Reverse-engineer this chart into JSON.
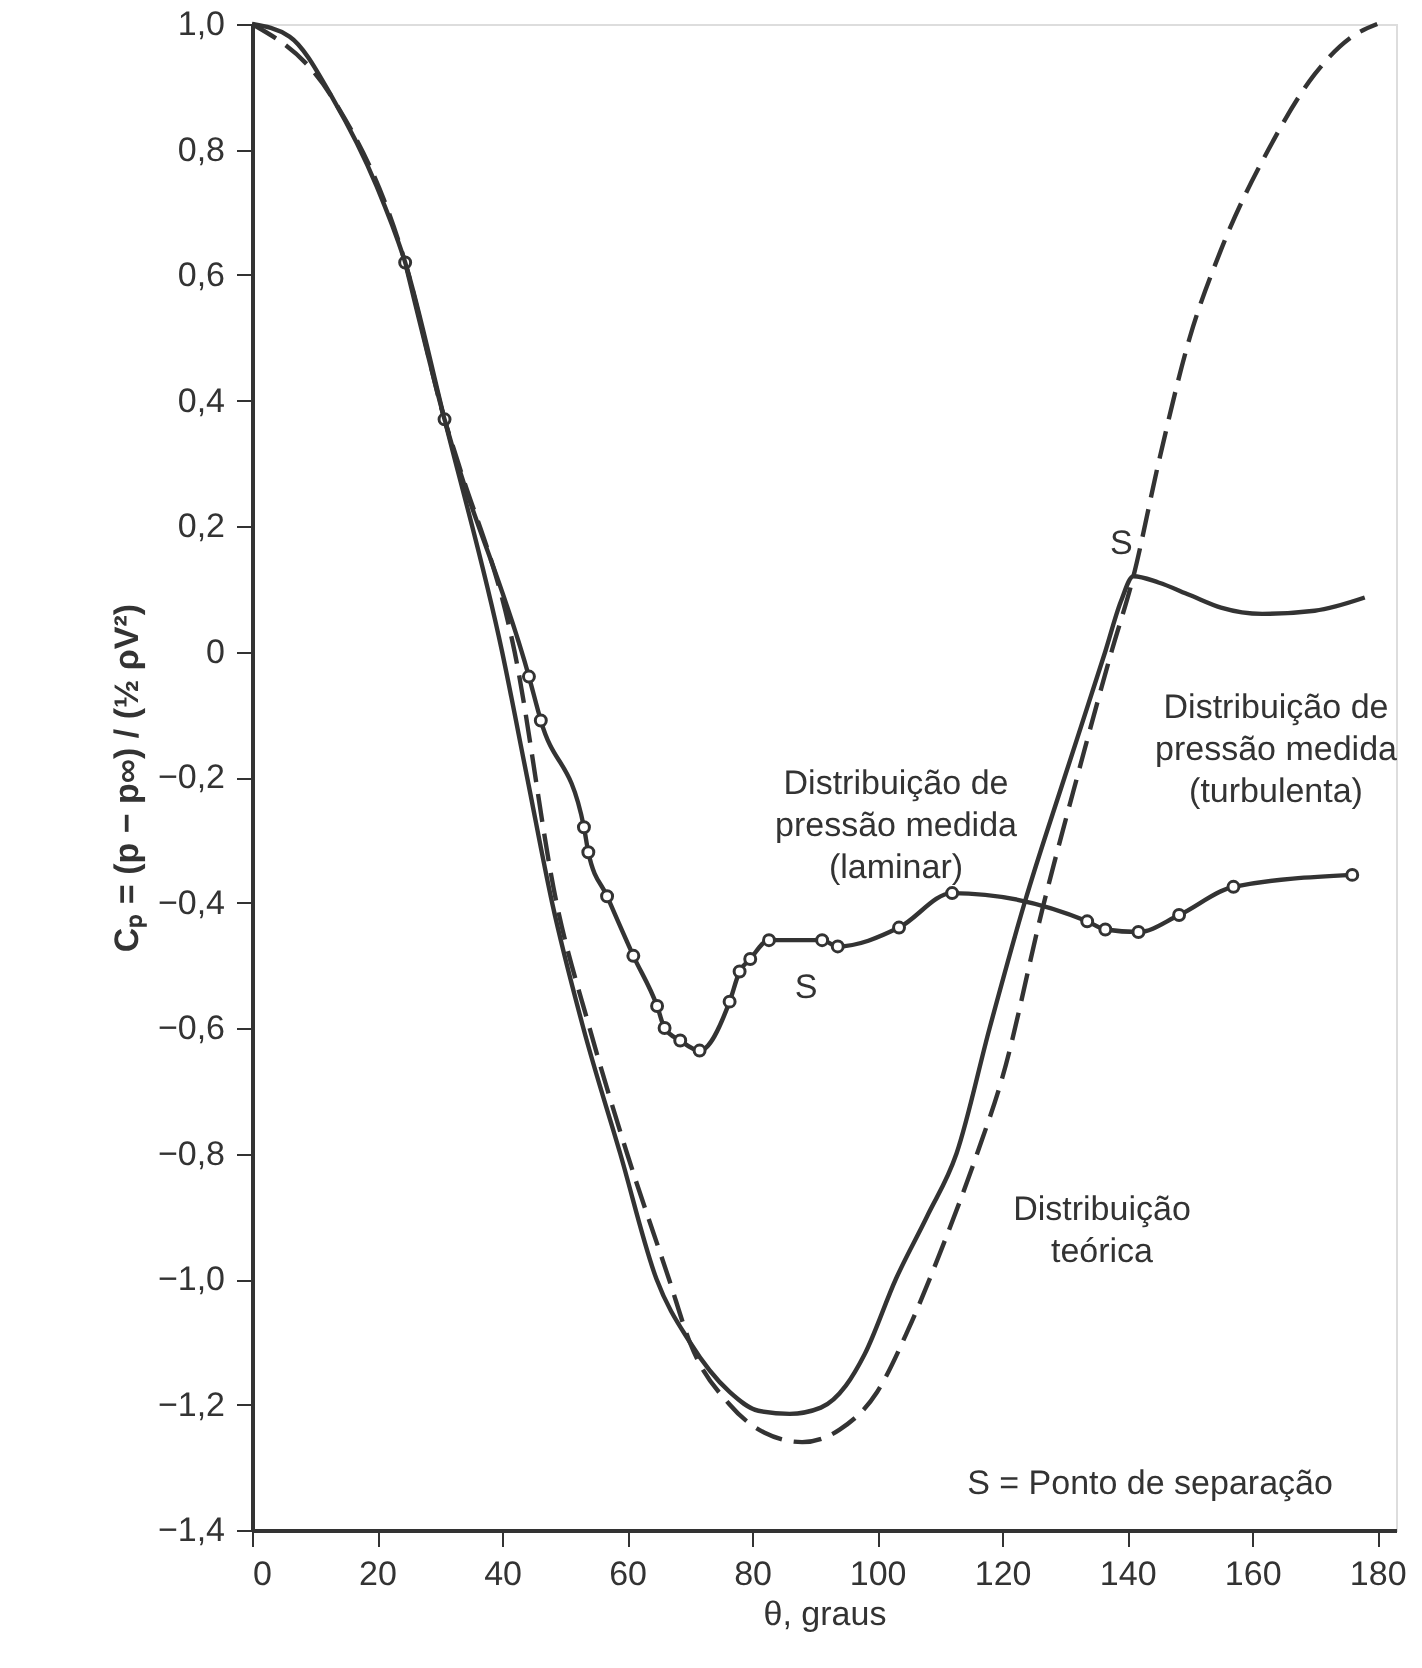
{
  "chart_data": {
    "type": "line",
    "xlabel": "θ, graus",
    "ylabel": "Cₚ = (p − p∞) / (½ ρV²)",
    "xlim": [
      0,
      183
    ],
    "ylim": [
      -1.4,
      1.0
    ],
    "xticks": [
      0,
      20,
      40,
      60,
      80,
      100,
      120,
      140,
      160,
      180
    ],
    "yticks": [
      {
        "value": 1.0,
        "label": "1,0"
      },
      {
        "value": 0.8,
        "label": "0,8"
      },
      {
        "value": 0.6,
        "label": "0,6"
      },
      {
        "value": 0.4,
        "label": "0,4"
      },
      {
        "value": 0.2,
        "label": "0,2"
      },
      {
        "value": 0,
        "label": "0"
      },
      {
        "value": -0.2,
        "label": "−0,2"
      },
      {
        "value": -0.4,
        "label": "−0,4"
      },
      {
        "value": -0.6,
        "label": "−0,6"
      },
      {
        "value": -0.8,
        "label": "−0,8"
      },
      {
        "value": -1.0,
        "label": "−1,0"
      },
      {
        "value": -1.2,
        "label": "−1,2"
      },
      {
        "value": -1.4,
        "label": "−1,4"
      }
    ],
    "grid": false,
    "series": [
      {
        "name": "Distribuição de pressão medida (turbulenta)",
        "color": "#333333",
        "line_style": "solid",
        "marker": "none",
        "x": [
          0,
          6,
          13,
          20,
          24.5,
          30.8,
          40,
          44,
          48,
          53,
          58.9,
          64.7,
          70,
          76.4,
          81,
          86,
          91,
          95,
          98,
          103,
          108,
          112.7,
          118,
          123.6,
          130,
          136.5,
          139,
          141,
          145,
          150,
          155,
          161.6,
          170,
          178
        ],
        "values": [
          1.0,
          0.98,
          0.88,
          0.74,
          0.62,
          0.37,
          0.0,
          -0.2,
          -0.4,
          -0.6,
          -0.8,
          -1.0,
          -1.1,
          -1.18,
          -1.21,
          -1.215,
          -1.205,
          -1.17,
          -1.12,
          -1.0,
          -0.9,
          -0.8,
          -0.6,
          -0.4,
          -0.2,
          0.0,
          0.08,
          0.12,
          0.11,
          0.09,
          0.07,
          0.06,
          0.065,
          0.086
        ]
      },
      {
        "name": "Distribuição de pressão medida (laminar)",
        "color": "#333333",
        "line_style": "solid",
        "marker": "circle",
        "x": [
          24.5,
          30.8,
          44.3,
          46.2,
          53.1,
          53.8,
          56.8,
          61,
          64.8,
          66,
          68.5,
          71.6,
          76.4,
          78,
          79.7,
          82.7,
          91.2,
          93.7,
          103.5,
          112,
          133.6,
          136.5,
          141.8,
          148.3,
          157,
          176
        ],
        "values": [
          0.62,
          0.37,
          -0.04,
          -0.11,
          -0.28,
          -0.32,
          -0.39,
          -0.485,
          -0.565,
          -0.6,
          -0.62,
          -0.636,
          -0.558,
          -0.51,
          -0.49,
          -0.46,
          -0.46,
          -0.47,
          -0.44,
          -0.385,
          -0.43,
          -0.443,
          -0.447,
          -0.42,
          -0.375,
          -0.356
        ]
      },
      {
        "name": "Distribuição teórica",
        "color": "#333333",
        "line_style": "dashed",
        "marker": "none",
        "x": [
          0,
          13,
          24.5,
          30.8,
          33,
          42,
          48.7,
          54,
          60,
          66.7,
          70,
          76.4,
          82,
          88,
          94,
          100,
          105,
          110,
          116,
          120,
          126.7,
          132,
          137.5,
          141,
          145,
          150,
          155,
          162.6,
          170,
          176,
          180
        ],
        "values": [
          1.0,
          0.88,
          0.62,
          0.37,
          0.3,
          0.0,
          -0.4,
          -0.6,
          -0.8,
          -1.0,
          -1.1,
          -1.2,
          -1.245,
          -1.26,
          -1.24,
          -1.18,
          -1.08,
          -0.96,
          -0.8,
          -0.68,
          -0.4,
          -0.2,
          0.0,
          0.12,
          0.3,
          0.5,
          0.64,
          0.8,
          0.92,
          0.98,
          1.0
        ]
      }
    ],
    "annotations": [
      {
        "text": "S",
        "x": 141,
        "y": 0.12
      },
      {
        "text": "S",
        "x": 88,
        "y": -0.46
      },
      "S = Ponto de separação"
    ]
  }
}
